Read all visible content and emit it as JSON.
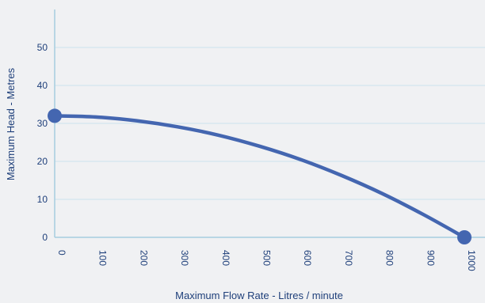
{
  "chart_data": {
    "type": "line",
    "title": "",
    "xlabel": "Maximum Flow Rate - Litres / minute",
    "ylabel": "Maximum Head - Metres",
    "xlim": [
      0,
      1000
    ],
    "ylim": [
      0,
      50
    ],
    "x_ticks": [
      "0",
      "100",
      "200",
      "300",
      "400",
      "500",
      "600",
      "700",
      "800",
      "900",
      "1000"
    ],
    "y_ticks": [
      "0",
      "10",
      "20",
      "30",
      "40",
      "50"
    ],
    "grid": "horizontal",
    "legend": "none",
    "series": [
      {
        "x": [
          0,
          100,
          200,
          300,
          400,
          500,
          600,
          700,
          800,
          900,
          1000
        ],
        "y": [
          32,
          31.7,
          30.7,
          29.1,
          26.9,
          24.0,
          20.5,
          16.3,
          11.5,
          6.0,
          0
        ],
        "endpoint_markers": true
      }
    ],
    "colors": {
      "background": "#f0f1f3",
      "line": "#4466b0",
      "marker": "#4466b0",
      "grid": "#cde3ee",
      "axis": "#a6cde0",
      "text": "#1e3f7a"
    }
  }
}
